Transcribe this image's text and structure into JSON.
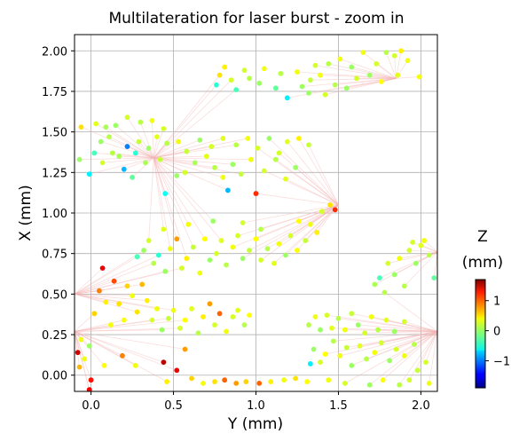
{
  "chart_data": {
    "type": "scatter",
    "title": "Multilateration for laser burst - zoom in",
    "xlabel": "Y (mm)",
    "ylabel": "X (mm)",
    "xlim": [
      -0.1,
      2.1
    ],
    "ylim": [
      -0.1,
      2.1
    ],
    "x_ticks": [
      "0.0",
      "0.5",
      "1.0",
      "1.5",
      "2.0"
    ],
    "y_ticks": [
      "0.00",
      "0.25",
      "0.50",
      "0.75",
      "1.00",
      "1.25",
      "1.50",
      "1.75",
      "2.00"
    ],
    "grid": true,
    "colorbar": {
      "title": "Z",
      "unit": "(mm)",
      "colormap": "jet",
      "range": [
        -1.9,
        1.7
      ],
      "ticks": [
        "−1",
        "0",
        "1"
      ]
    },
    "fan_line_color": "#f4b4b4",
    "points": [
      {
        "x": 1.28,
        "y": 1.78,
        "z": 0.0
      },
      {
        "x": 1.33,
        "y": 1.82,
        "z": 0.15
      },
      {
        "x": 1.39,
        "y": 1.85,
        "z": 0.3
      },
      {
        "x": 1.48,
        "y": 1.79,
        "z": 0.1
      },
      {
        "x": 1.55,
        "y": 1.77,
        "z": 0.0
      },
      {
        "x": 1.61,
        "y": 1.83,
        "z": 0.2
      },
      {
        "x": 1.69,
        "y": 1.85,
        "z": 0.0
      },
      {
        "x": 1.76,
        "y": 1.81,
        "z": 0.35
      },
      {
        "x": 1.86,
        "y": 1.85,
        "z": 0.25
      },
      {
        "x": 1.99,
        "y": 1.84,
        "z": 0.3
      },
      {
        "x": 0.78,
        "y": 1.85,
        "z": 0.45
      },
      {
        "x": 0.85,
        "y": 1.82,
        "z": 0.2
      },
      {
        "x": 0.88,
        "y": 1.76,
        "z": -0.3
      },
      {
        "x": 0.96,
        "y": 1.83,
        "z": 0.1
      },
      {
        "x": 1.02,
        "y": 1.8,
        "z": 0.0
      },
      {
        "x": 1.12,
        "y": 1.77,
        "z": -0.2
      },
      {
        "x": 1.19,
        "y": 1.71,
        "z": -0.6
      },
      {
        "x": 1.25,
        "y": 1.87,
        "z": 0.3
      },
      {
        "x": 1.36,
        "y": 1.91,
        "z": 0.2
      },
      {
        "x": 1.44,
        "y": 1.92,
        "z": 0.1
      },
      {
        "x": 1.51,
        "y": 1.95,
        "z": 0.3
      },
      {
        "x": 1.84,
        "y": 1.97,
        "z": 0.2
      },
      {
        "x": 1.92,
        "y": 1.94,
        "z": 0.3
      },
      {
        "x": 0.76,
        "y": 1.79,
        "z": -0.4
      },
      {
        "x": 0.81,
        "y": 1.9,
        "z": 0.4
      },
      {
        "x": 0.93,
        "y": 1.88,
        "z": 0.2
      },
      {
        "x": 1.05,
        "y": 1.89,
        "z": 0.3
      },
      {
        "x": 1.15,
        "y": 1.86,
        "z": 0.1
      },
      {
        "x": 1.32,
        "y": 1.74,
        "z": 0.0
      },
      {
        "x": 1.42,
        "y": 1.73,
        "z": 0.2
      },
      {
        "x": 1.58,
        "y": 1.9,
        "z": 0.0
      },
      {
        "x": 1.65,
        "y": 1.99,
        "z": 0.3
      },
      {
        "x": 1.73,
        "y": 1.92,
        "z": 0.2
      },
      {
        "x": 1.79,
        "y": 1.99,
        "z": 0.1
      },
      {
        "x": 1.88,
        "y": 2.0,
        "z": 0.4
      },
      {
        "x": -0.06,
        "y": 1.53,
        "z": 0.45
      },
      {
        "x": 0.03,
        "y": 1.55,
        "z": 0.25
      },
      {
        "x": 0.09,
        "y": 1.53,
        "z": 0.05
      },
      {
        "x": 0.15,
        "y": 1.54,
        "z": 0.0
      },
      {
        "x": 0.22,
        "y": 1.59,
        "z": 0.2
      },
      {
        "x": 0.3,
        "y": 1.56,
        "z": 0.1
      },
      {
        "x": 0.37,
        "y": 1.57,
        "z": 0.3
      },
      {
        "x": 0.44,
        "y": 1.52,
        "z": 0.2
      },
      {
        "x": 0.02,
        "y": 1.37,
        "z": -0.3
      },
      {
        "x": 0.06,
        "y": 1.44,
        "z": 0.0
      },
      {
        "x": 0.11,
        "y": 1.47,
        "z": 0.1
      },
      {
        "x": 0.17,
        "y": 1.35,
        "z": 0.05
      },
      {
        "x": 0.22,
        "y": 1.41,
        "z": -1.0
      },
      {
        "x": 0.27,
        "y": 1.37,
        "z": -0.4
      },
      {
        "x": 0.29,
        "y": 1.44,
        "z": 0.15
      },
      {
        "x": 0.35,
        "y": 1.4,
        "z": 0.0
      },
      {
        "x": 0.4,
        "y": 1.47,
        "z": 0.25
      },
      {
        "x": 0.46,
        "y": 1.43,
        "z": 0.1
      },
      {
        "x": 0.53,
        "y": 1.44,
        "z": 0.3
      },
      {
        "x": 0.58,
        "y": 1.38,
        "z": 0.15
      },
      {
        "x": 0.66,
        "y": 1.45,
        "z": 0.0
      },
      {
        "x": 0.73,
        "y": 1.41,
        "z": 0.2
      },
      {
        "x": 0.8,
        "y": 1.46,
        "z": 0.25
      },
      {
        "x": 0.88,
        "y": 1.42,
        "z": 0.1
      },
      {
        "x": 0.95,
        "y": 1.46,
        "z": 0.3
      },
      {
        "x": 1.01,
        "y": 1.4,
        "z": 0.2
      },
      {
        "x": 1.08,
        "y": 1.46,
        "z": 0.0
      },
      {
        "x": 1.14,
        "y": 1.37,
        "z": 0.2
      },
      {
        "x": 1.19,
        "y": 1.44,
        "z": 0.25
      },
      {
        "x": 1.26,
        "y": 1.46,
        "z": 0.4
      },
      {
        "x": 1.32,
        "y": 1.42,
        "z": 0.15
      },
      {
        "x": -0.07,
        "y": 1.33,
        "z": 0.0
      },
      {
        "x": -0.01,
        "y": 1.24,
        "z": -0.6
      },
      {
        "x": 0.07,
        "y": 1.31,
        "z": 0.2
      },
      {
        "x": 0.13,
        "y": 1.37,
        "z": 0.1
      },
      {
        "x": 0.2,
        "y": 1.27,
        "z": -0.8
      },
      {
        "x": 0.25,
        "y": 1.22,
        "z": -0.2
      },
      {
        "x": 0.33,
        "y": 1.31,
        "z": 0.05
      },
      {
        "x": 0.42,
        "y": 1.33,
        "z": 0.15
      },
      {
        "x": 0.45,
        "y": 1.12,
        "z": -0.5
      },
      {
        "x": 0.52,
        "y": 1.23,
        "z": 0.0
      },
      {
        "x": 0.57,
        "y": 1.25,
        "z": 0.2
      },
      {
        "x": 0.63,
        "y": 1.31,
        "z": 0.05
      },
      {
        "x": 0.7,
        "y": 1.35,
        "z": 0.25
      },
      {
        "x": 0.75,
        "y": 1.28,
        "z": 0.1
      },
      {
        "x": 0.8,
        "y": 1.22,
        "z": 0.3
      },
      {
        "x": 0.83,
        "y": 1.14,
        "z": -0.8
      },
      {
        "x": 0.86,
        "y": 1.3,
        "z": 0.0
      },
      {
        "x": 0.91,
        "y": 1.24,
        "z": 0.15
      },
      {
        "x": 0.97,
        "y": 1.33,
        "z": 0.3
      },
      {
        "x": 1.0,
        "y": 1.12,
        "z": 1.1
      },
      {
        "x": 1.05,
        "y": 1.26,
        "z": 0.2
      },
      {
        "x": 1.12,
        "y": 1.33,
        "z": 0.1
      },
      {
        "x": 1.18,
        "y": 1.21,
        "z": 0.25
      },
      {
        "x": 1.24,
        "y": 1.28,
        "z": 0.0
      },
      {
        "x": 0.28,
        "y": 0.73,
        "z": -0.3
      },
      {
        "x": 0.32,
        "y": 0.77,
        "z": 0.0
      },
      {
        "x": 0.35,
        "y": 0.83,
        "z": 0.2
      },
      {
        "x": 0.38,
        "y": 0.69,
        "z": 0.1
      },
      {
        "x": 0.41,
        "y": 0.74,
        "z": -0.4
      },
      {
        "x": 0.45,
        "y": 0.64,
        "z": 0.0
      },
      {
        "x": 0.48,
        "y": 0.78,
        "z": 0.3
      },
      {
        "x": 0.52,
        "y": 0.84,
        "z": 0.7
      },
      {
        "x": 0.55,
        "y": 0.66,
        "z": 0.2
      },
      {
        "x": 0.58,
        "y": 0.72,
        "z": 0.4
      },
      {
        "x": 0.62,
        "y": 0.79,
        "z": 0.15
      },
      {
        "x": 0.66,
        "y": 0.63,
        "z": 0.3
      },
      {
        "x": 0.69,
        "y": 0.84,
        "z": 0.35
      },
      {
        "x": 0.72,
        "y": 0.71,
        "z": 0.0
      },
      {
        "x": 0.76,
        "y": 0.75,
        "z": 0.2
      },
      {
        "x": 0.79,
        "y": 0.83,
        "z": 0.25
      },
      {
        "x": 0.82,
        "y": 0.68,
        "z": 0.1
      },
      {
        "x": 0.86,
        "y": 0.79,
        "z": 0.3
      },
      {
        "x": 0.89,
        "y": 0.86,
        "z": 0.2
      },
      {
        "x": 0.92,
        "y": 0.72,
        "z": 0.0
      },
      {
        "x": 0.96,
        "y": 0.77,
        "z": 0.15
      },
      {
        "x": 1.0,
        "y": 0.84,
        "z": 0.35
      },
      {
        "x": 1.03,
        "y": 0.71,
        "z": 0.2
      },
      {
        "x": 1.07,
        "y": 0.78,
        "z": 0.1
      },
      {
        "x": 1.11,
        "y": 0.69,
        "z": 0.25
      },
      {
        "x": 1.14,
        "y": 0.81,
        "z": 0.3
      },
      {
        "x": 1.18,
        "y": 0.74,
        "z": 0.0
      },
      {
        "x": 1.21,
        "y": 0.86,
        "z": 0.2
      },
      {
        "x": 1.25,
        "y": 0.77,
        "z": 0.35
      },
      {
        "x": 1.3,
        "y": 0.83,
        "z": 0.15
      },
      {
        "x": 1.33,
        "y": 0.93,
        "z": 0.3
      },
      {
        "x": 1.37,
        "y": 0.88,
        "z": 0.4
      },
      {
        "x": 1.4,
        "y": 1.01,
        "z": 0.2
      },
      {
        "x": 1.45,
        "y": 1.05,
        "z": 0.45
      },
      {
        "x": 1.48,
        "y": 1.02,
        "z": 1.1
      },
      {
        "x": 0.44,
        "y": 0.9,
        "z": 0.25
      },
      {
        "x": 0.59,
        "y": 0.93,
        "z": 0.3
      },
      {
        "x": 0.74,
        "y": 0.95,
        "z": 0.0
      },
      {
        "x": 0.92,
        "y": 0.94,
        "z": 0.2
      },
      {
        "x": 1.03,
        "y": 0.9,
        "z": 0.1
      },
      {
        "x": 1.26,
        "y": 0.95,
        "z": 0.35
      },
      {
        "x": -0.06,
        "y": 0.22,
        "z": 0.3
      },
      {
        "x": -0.01,
        "y": 0.18,
        "z": 0.0
      },
      {
        "x": 0.02,
        "y": 0.38,
        "z": 0.5
      },
      {
        "x": 0.05,
        "y": 0.52,
        "z": 0.8
      },
      {
        "x": 0.07,
        "y": 0.66,
        "z": 1.3
      },
      {
        "x": 0.09,
        "y": 0.45,
        "z": 0.4
      },
      {
        "x": 0.12,
        "y": 0.31,
        "z": 0.3
      },
      {
        "x": 0.14,
        "y": 0.58,
        "z": 1.0
      },
      {
        "x": 0.17,
        "y": 0.44,
        "z": 0.45
      },
      {
        "x": 0.2,
        "y": 0.34,
        "z": 0.35
      },
      {
        "x": 0.22,
        "y": 0.55,
        "z": 0.5
      },
      {
        "x": 0.25,
        "y": 0.49,
        "z": 0.3
      },
      {
        "x": 0.28,
        "y": 0.39,
        "z": 0.45
      },
      {
        "x": 0.31,
        "y": 0.56,
        "z": 0.6
      },
      {
        "x": 0.34,
        "y": 0.46,
        "z": 0.4
      },
      {
        "x": 0.37,
        "y": 0.34,
        "z": 0.2
      },
      {
        "x": 0.4,
        "y": 0.41,
        "z": 0.3
      },
      {
        "x": 0.43,
        "y": 0.28,
        "z": 0.0
      },
      {
        "x": 0.47,
        "y": 0.35,
        "z": 0.15
      },
      {
        "x": 0.5,
        "y": 0.4,
        "z": 0.3
      },
      {
        "x": 0.54,
        "y": 0.29,
        "z": 0.2
      },
      {
        "x": 0.57,
        "y": 0.34,
        "z": 0.35
      },
      {
        "x": 0.61,
        "y": 0.41,
        "z": 0.25
      },
      {
        "x": 0.65,
        "y": 0.26,
        "z": 0.1
      },
      {
        "x": 0.68,
        "y": 0.36,
        "z": 0.4
      },
      {
        "x": 0.72,
        "y": 0.44,
        "z": 0.7
      },
      {
        "x": 0.75,
        "y": 0.31,
        "z": 0.2
      },
      {
        "x": 0.78,
        "y": 0.38,
        "z": 0.9
      },
      {
        "x": 0.82,
        "y": 0.27,
        "z": 0.3
      },
      {
        "x": 0.86,
        "y": 0.36,
        "z": 0.2
      },
      {
        "x": 0.89,
        "y": 0.4,
        "z": 0.25
      },
      {
        "x": 0.93,
        "y": 0.31,
        "z": 0.1
      },
      {
        "x": 0.96,
        "y": 0.37,
        "z": 0.35
      },
      {
        "x": -0.08,
        "y": 0.14,
        "z": 1.4
      },
      {
        "x": -0.07,
        "y": 0.05,
        "z": 0.6
      },
      {
        "x": -0.04,
        "y": 0.1,
        "z": 0.3
      },
      {
        "x": 0.0,
        "y": -0.03,
        "z": 1.2
      },
      {
        "x": -0.01,
        "y": -0.09,
        "z": 1.3
      },
      {
        "x": 0.08,
        "y": 0.06,
        "z": 0.35
      },
      {
        "x": 0.19,
        "y": 0.12,
        "z": 0.8
      },
      {
        "x": 0.27,
        "y": 0.06,
        "z": 0.3
      },
      {
        "x": 0.44,
        "y": 0.08,
        "z": 1.5
      },
      {
        "x": 0.46,
        "y": -0.04,
        "z": 0.4
      },
      {
        "x": 0.52,
        "y": 0.03,
        "z": 1.3
      },
      {
        "x": 0.57,
        "y": 0.16,
        "z": 0.7
      },
      {
        "x": 0.61,
        "y": -0.02,
        "z": 0.5
      },
      {
        "x": 0.68,
        "y": -0.05,
        "z": 0.3
      },
      {
        "x": 0.75,
        "y": -0.04,
        "z": 0.45
      },
      {
        "x": 0.81,
        "y": -0.03,
        "z": 0.9
      },
      {
        "x": 0.88,
        "y": -0.05,
        "z": 0.7
      },
      {
        "x": 0.94,
        "y": -0.04,
        "z": 0.5
      },
      {
        "x": 1.02,
        "y": -0.05,
        "z": 0.9
      },
      {
        "x": 1.09,
        "y": -0.04,
        "z": 0.4
      },
      {
        "x": 1.17,
        "y": -0.03,
        "z": 0.3
      },
      {
        "x": 1.24,
        "y": -0.02,
        "z": 0.45
      },
      {
        "x": 1.31,
        "y": -0.04,
        "z": 0.35
      },
      {
        "x": -0.01,
        "y": -0.09,
        "z": 1.3
      },
      {
        "x": 1.32,
        "y": 0.31,
        "z": 0.1
      },
      {
        "x": 1.36,
        "y": 0.36,
        "z": 0.3
      },
      {
        "x": 1.39,
        "y": 0.28,
        "z": 0.0
      },
      {
        "x": 1.43,
        "y": 0.37,
        "z": 0.2
      },
      {
        "x": 1.46,
        "y": 0.29,
        "z": 0.25
      },
      {
        "x": 1.5,
        "y": 0.35,
        "z": 0.1
      },
      {
        "x": 1.54,
        "y": 0.28,
        "z": 0.3
      },
      {
        "x": 1.58,
        "y": 0.38,
        "z": 0.15
      },
      {
        "x": 1.62,
        "y": 0.31,
        "z": 0.0
      },
      {
        "x": 1.66,
        "y": 0.26,
        "z": 0.2
      },
      {
        "x": 1.7,
        "y": 0.36,
        "z": 0.3
      },
      {
        "x": 1.74,
        "y": 0.28,
        "z": 0.1
      },
      {
        "x": 1.79,
        "y": 0.34,
        "z": 0.25
      },
      {
        "x": 1.84,
        "y": 0.27,
        "z": 0.0
      },
      {
        "x": 1.9,
        "y": 0.33,
        "z": 0.2
      },
      {
        "x": 1.35,
        "y": 0.16,
        "z": 0.0
      },
      {
        "x": 1.39,
        "y": 0.08,
        "z": 0.2
      },
      {
        "x": 1.42,
        "y": 0.13,
        "z": 0.35
      },
      {
        "x": 1.47,
        "y": 0.21,
        "z": 0.1
      },
      {
        "x": 1.51,
        "y": 0.12,
        "z": 0.3
      },
      {
        "x": 1.55,
        "y": 0.17,
        "z": 0.15
      },
      {
        "x": 1.58,
        "y": 0.06,
        "z": 0.0
      },
      {
        "x": 1.63,
        "y": 0.18,
        "z": 0.25
      },
      {
        "x": 1.67,
        "y": 0.1,
        "z": 0.1
      },
      {
        "x": 1.72,
        "y": 0.14,
        "z": 0.3
      },
      {
        "x": 1.76,
        "y": 0.2,
        "z": 0.2
      },
      {
        "x": 1.81,
        "y": 0.09,
        "z": 0.0
      },
      {
        "x": 1.85,
        "y": 0.16,
        "z": 0.2
      },
      {
        "x": 1.9,
        "y": 0.12,
        "z": 0.3
      },
      {
        "x": 1.96,
        "y": 0.19,
        "z": 0.1
      },
      {
        "x": 2.03,
        "y": 0.08,
        "z": 0.2
      },
      {
        "x": 1.33,
        "y": 0.07,
        "z": -0.6
      },
      {
        "x": 1.98,
        "y": 0.03,
        "z": 0.15
      },
      {
        "x": 1.72,
        "y": 0.56,
        "z": 0.05
      },
      {
        "x": 1.75,
        "y": 0.6,
        "z": -0.3
      },
      {
        "x": 1.78,
        "y": 0.51,
        "z": 0.1
      },
      {
        "x": 1.8,
        "y": 0.69,
        "z": 0.2
      },
      {
        "x": 1.84,
        "y": 0.62,
        "z": 0.0
      },
      {
        "x": 1.87,
        "y": 0.72,
        "z": 0.3
      },
      {
        "x": 1.9,
        "y": 0.55,
        "z": 0.1
      },
      {
        "x": 1.93,
        "y": 0.77,
        "z": 0.2
      },
      {
        "x": 1.97,
        "y": 0.69,
        "z": 0.0
      },
      {
        "x": 2.0,
        "y": 0.8,
        "z": 0.25
      },
      {
        "x": 2.05,
        "y": 0.74,
        "z": 0.1
      },
      {
        "x": 2.08,
        "y": 0.6,
        "z": -0.2
      },
      {
        "x": 2.02,
        "y": 0.83,
        "z": 0.3
      },
      {
        "x": 1.95,
        "y": 0.82,
        "z": 0.2
      },
      {
        "x": 1.44,
        "y": -0.03,
        "z": 0.3
      },
      {
        "x": 1.54,
        "y": -0.05,
        "z": 0.2
      },
      {
        "x": 1.69,
        "y": -0.06,
        "z": 0.0
      },
      {
        "x": 1.77,
        "y": -0.03,
        "z": 0.35
      },
      {
        "x": 1.87,
        "y": -0.06,
        "z": 0.1
      },
      {
        "x": 1.93,
        "y": -0.03,
        "z": 0.2
      },
      {
        "x": 2.05,
        "y": -0.05,
        "z": 0.3
      }
    ]
  }
}
